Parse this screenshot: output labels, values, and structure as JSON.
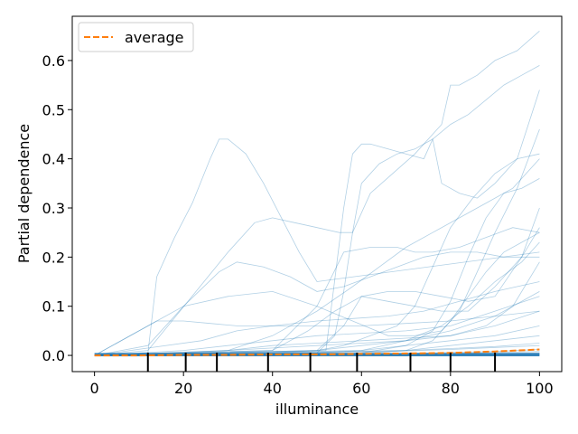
{
  "chart_data": {
    "type": "line",
    "title": "",
    "xlabel": "illuminance",
    "ylabel": "Partial dependence",
    "xlim": [
      -5,
      105
    ],
    "ylim": [
      -0.033,
      0.69
    ],
    "xticks": [
      0,
      20,
      40,
      60,
      80,
      100
    ],
    "yticks": [
      0.0,
      0.1,
      0.2,
      0.3,
      0.4,
      0.5,
      0.6
    ],
    "xtick_labels": [
      "0",
      "20",
      "40",
      "60",
      "80",
      "100"
    ],
    "ytick_labels": [
      "0.0",
      "0.1",
      "0.2",
      "0.3",
      "0.4",
      "0.5",
      "0.6"
    ],
    "grid": false,
    "legend": {
      "position": "upper-left",
      "entries": [
        "average"
      ]
    },
    "colors": {
      "individual": "#1f77b4",
      "average": "#ff7f0e",
      "rug": "#000000"
    },
    "rug_x": [
      12,
      20.5,
      27.5,
      39,
      48.5,
      59,
      71,
      80,
      90
    ],
    "average": {
      "name": "average",
      "x": [
        0,
        10,
        20,
        30,
        40,
        50,
        60,
        70,
        80,
        90,
        100
      ],
      "y": [
        0.0,
        0.0,
        0.001,
        0.001,
        0.002,
        0.002,
        0.003,
        0.004,
        0.005,
        0.008,
        0.012
      ]
    },
    "series": [
      {
        "x": [
          0,
          12,
          14,
          18,
          22,
          26,
          28,
          30,
          34,
          38,
          42,
          46,
          50,
          100
        ],
        "y": [
          0.0,
          0.005,
          0.16,
          0.24,
          0.31,
          0.4,
          0.44,
          0.44,
          0.41,
          0.35,
          0.28,
          0.21,
          0.15,
          0.21
        ]
      },
      {
        "x": [
          0,
          12,
          30,
          36,
          40,
          45,
          50,
          55,
          58,
          62,
          67,
          72,
          76,
          78,
          80,
          82,
          86,
          90,
          95,
          100
        ],
        "y": [
          0.0,
          0.01,
          0.21,
          0.27,
          0.28,
          0.27,
          0.26,
          0.25,
          0.25,
          0.33,
          0.37,
          0.41,
          0.45,
          0.47,
          0.55,
          0.55,
          0.57,
          0.6,
          0.62,
          0.66
        ]
      },
      {
        "x": [
          0,
          50,
          54,
          56,
          58,
          60,
          64,
          68,
          72,
          76,
          80,
          84,
          88,
          92,
          96,
          100
        ],
        "y": [
          0.0,
          0.005,
          0.04,
          0.13,
          0.25,
          0.35,
          0.39,
          0.41,
          0.42,
          0.44,
          0.47,
          0.49,
          0.52,
          0.55,
          0.57,
          0.59
        ]
      },
      {
        "x": [
          0,
          52,
          56,
          58,
          60,
          62,
          66,
          70,
          74,
          76,
          78,
          82,
          86,
          90,
          95,
          100
        ],
        "y": [
          0.0,
          0.01,
          0.3,
          0.41,
          0.43,
          0.43,
          0.42,
          0.41,
          0.4,
          0.44,
          0.35,
          0.33,
          0.32,
          0.35,
          0.4,
          0.54
        ]
      },
      {
        "x": [
          0,
          12,
          20,
          28,
          32,
          38,
          44,
          50,
          56,
          62,
          68,
          74,
          80,
          86,
          92,
          100
        ],
        "y": [
          0.0,
          0.02,
          0.1,
          0.17,
          0.19,
          0.18,
          0.16,
          0.13,
          0.14,
          0.16,
          0.18,
          0.2,
          0.21,
          0.21,
          0.2,
          0.2
        ]
      },
      {
        "x": [
          0,
          14,
          20,
          30,
          40,
          50,
          58,
          66,
          72,
          78,
          82,
          86,
          90,
          95,
          100
        ],
        "y": [
          0.0,
          0.07,
          0.1,
          0.12,
          0.13,
          0.1,
          0.07,
          0.04,
          0.04,
          0.05,
          0.09,
          0.17,
          0.25,
          0.34,
          0.46
        ]
      },
      {
        "x": [
          0,
          40,
          50,
          56,
          62,
          68,
          72,
          76,
          82,
          88,
          94,
          100
        ],
        "y": [
          0.0,
          0.01,
          0.1,
          0.21,
          0.22,
          0.22,
          0.21,
          0.21,
          0.22,
          0.24,
          0.26,
          0.25
        ]
      },
      {
        "x": [
          0,
          50,
          56,
          62,
          68,
          72,
          76,
          80,
          85,
          90,
          95,
          100
        ],
        "y": [
          0.0,
          0.01,
          0.02,
          0.04,
          0.06,
          0.1,
          0.18,
          0.26,
          0.32,
          0.37,
          0.4,
          0.41
        ]
      },
      {
        "x": [
          0,
          30,
          40,
          50,
          58,
          64,
          70,
          76,
          82,
          88,
          94,
          100
        ],
        "y": [
          0.0,
          0.01,
          0.04,
          0.09,
          0.14,
          0.18,
          0.22,
          0.25,
          0.28,
          0.31,
          0.34,
          0.4
        ]
      },
      {
        "x": [
          0,
          14,
          20,
          26,
          32,
          40,
          50,
          58,
          66,
          74,
          82,
          90,
          100
        ],
        "y": [
          0.0,
          0.07,
          0.07,
          0.065,
          0.06,
          0.06,
          0.07,
          0.075,
          0.08,
          0.09,
          0.11,
          0.13,
          0.15
        ]
      },
      {
        "x": [
          0,
          60,
          70,
          76,
          80,
          84,
          88,
          92,
          96,
          100
        ],
        "y": [
          0.0,
          0.005,
          0.02,
          0.05,
          0.11,
          0.2,
          0.28,
          0.33,
          0.34,
          0.36
        ]
      },
      {
        "x": [
          0,
          40,
          48,
          54,
          60,
          66,
          72,
          78,
          84,
          90,
          96,
          100
        ],
        "y": [
          0.0,
          0.01,
          0.05,
          0.09,
          0.12,
          0.13,
          0.13,
          0.12,
          0.11,
          0.12,
          0.2,
          0.3
        ]
      },
      {
        "x": [
          0,
          24,
          32,
          40,
          50,
          60,
          70,
          80,
          90,
          100
        ],
        "y": [
          0.0,
          0.03,
          0.05,
          0.06,
          0.06,
          0.06,
          0.065,
          0.07,
          0.08,
          0.09
        ]
      },
      {
        "x": [
          0,
          50,
          56,
          60,
          66,
          72,
          78,
          84,
          90,
          96,
          100
        ],
        "y": [
          0.0,
          0.01,
          0.06,
          0.12,
          0.11,
          0.1,
          0.09,
          0.09,
          0.14,
          0.2,
          0.26
        ]
      },
      {
        "x": [
          0,
          70,
          76,
          80,
          84,
          88,
          92,
          96,
          100
        ],
        "y": [
          0.0,
          0.01,
          0.03,
          0.07,
          0.12,
          0.17,
          0.21,
          0.23,
          0.25
        ]
      },
      {
        "x": [
          0,
          20,
          30,
          40,
          50,
          60,
          70,
          80,
          90,
          100
        ],
        "y": [
          0.0,
          0.01,
          0.02,
          0.03,
          0.04,
          0.045,
          0.05,
          0.06,
          0.09,
          0.12
        ]
      },
      {
        "x": [
          0,
          30,
          40,
          50,
          60,
          70,
          80,
          88,
          94,
          100
        ],
        "y": [
          0.0,
          0.01,
          0.02,
          0.025,
          0.03,
          0.035,
          0.04,
          0.06,
          0.1,
          0.19
        ]
      },
      {
        "x": [
          0,
          60,
          70,
          78,
          84,
          90,
          96,
          100
        ],
        "y": [
          0.0,
          0.01,
          0.03,
          0.06,
          0.1,
          0.15,
          0.19,
          0.23
        ]
      },
      {
        "x": [
          0,
          40,
          50,
          60,
          70,
          80,
          90,
          100
        ],
        "y": [
          0.0,
          0.005,
          0.01,
          0.02,
          0.03,
          0.05,
          0.08,
          0.13
        ]
      },
      {
        "x": [
          0,
          20,
          30,
          40,
          50,
          60,
          70,
          80,
          90,
          100
        ],
        "y": [
          0.0,
          0.005,
          0.01,
          0.015,
          0.02,
          0.025,
          0.03,
          0.04,
          0.06,
          0.09
        ]
      },
      {
        "x": [
          0,
          50,
          60,
          70,
          80,
          90,
          100
        ],
        "y": [
          0.0,
          0.005,
          0.01,
          0.02,
          0.03,
          0.04,
          0.06
        ]
      },
      {
        "x": [
          0,
          60,
          70,
          80,
          90,
          100
        ],
        "y": [
          0.0,
          0.004,
          0.01,
          0.02,
          0.03,
          0.04
        ]
      },
      {
        "x": [
          0,
          30,
          50,
          70,
          90,
          100
        ],
        "y": [
          0.0,
          0.003,
          0.006,
          0.01,
          0.018,
          0.025
        ]
      },
      {
        "x": [
          0,
          40,
          60,
          80,
          100
        ],
        "y": [
          0.0,
          0.003,
          0.006,
          0.012,
          0.02
        ]
      },
      {
        "x": [
          0,
          50,
          70,
          90,
          100
        ],
        "y": [
          0.0,
          0.002,
          0.004,
          0.008,
          0.012
        ]
      },
      {
        "x": [
          0,
          60,
          80,
          100
        ],
        "y": [
          0.0,
          0.002,
          0.004,
          0.008
        ]
      },
      {
        "x": [
          0,
          70,
          100
        ],
        "y": [
          0.0,
          0.002,
          0.005
        ]
      },
      {
        "x": [
          0,
          100
        ],
        "y": [
          0.0,
          0.003
        ]
      },
      {
        "x": [
          0,
          100
        ],
        "y": [
          0.0,
          0.001
        ]
      }
    ]
  }
}
